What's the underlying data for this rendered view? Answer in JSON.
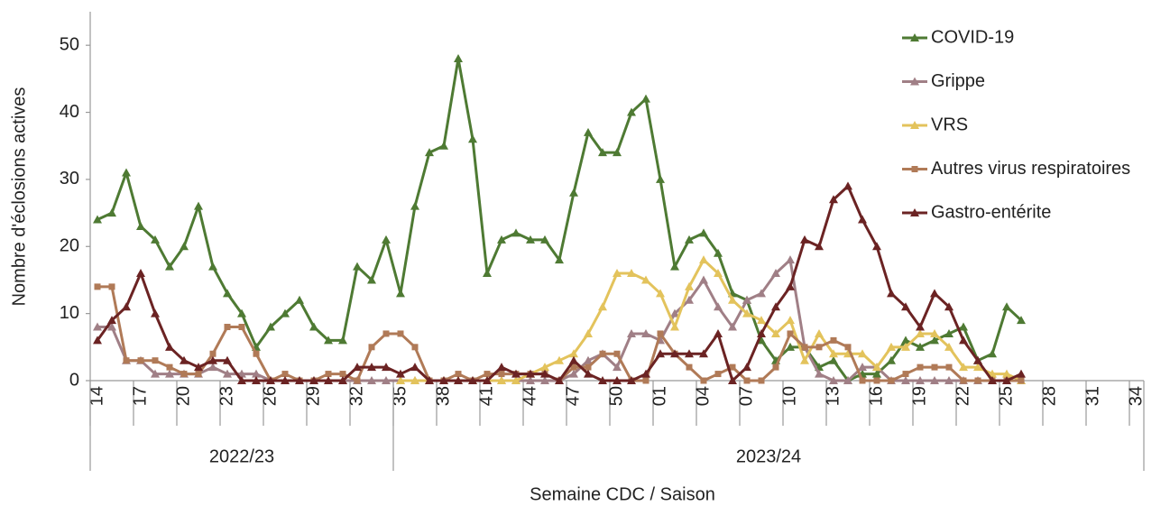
{
  "chart_data": {
    "type": "line",
    "y_label": "Nombre d'éclosions actives",
    "x_label": "Semaine CDC / Saison",
    "categories": [
      "14",
      null,
      null,
      "17",
      null,
      null,
      "20",
      null,
      null,
      "23",
      null,
      null,
      "26",
      null,
      null,
      "29",
      null,
      null,
      "32",
      null,
      null,
      "35",
      null,
      null,
      "38",
      null,
      null,
      "41",
      null,
      null,
      "44",
      null,
      null,
      "47",
      null,
      null,
      "50",
      null,
      null,
      "01",
      null,
      null,
      "04",
      null,
      null,
      "07",
      null,
      null,
      "10",
      null,
      null,
      "13",
      null,
      null,
      "16",
      null,
      null,
      "19",
      null,
      null,
      "22",
      null,
      null,
      "25",
      null,
      null,
      "28",
      null,
      null,
      "31",
      null,
      null,
      "34"
    ],
    "x_groups": [
      {
        "label": "2022/23",
        "size": 21
      },
      {
        "label": "2023/24",
        "size": 52
      }
    ],
    "ylim": [
      0,
      55
    ],
    "yticks": [
      0,
      10,
      20,
      30,
      40,
      50
    ],
    "legend": "right",
    "series": [
      {
        "name": "COVID-19",
        "color": "#4e7a33",
        "marker": "triangle",
        "values": [
          24,
          25,
          31,
          23,
          21,
          17,
          20,
          26,
          17,
          13,
          10,
          5,
          8,
          10,
          12,
          8,
          6,
          6,
          17,
          15,
          21,
          13,
          26,
          34,
          35,
          48,
          36,
          16,
          21,
          22,
          21,
          21,
          18,
          28,
          37,
          34,
          34,
          40,
          42,
          30,
          17,
          21,
          22,
          19,
          13,
          12,
          6,
          3,
          5,
          5,
          2,
          3,
          0,
          1,
          1,
          3,
          6,
          5,
          6,
          7,
          8,
          3,
          4,
          11,
          9,
          null,
          null,
          null,
          null,
          null,
          null,
          null,
          null
        ]
      },
      {
        "name": "Grippe",
        "color": "#a07f86",
        "marker": "triangle",
        "values": [
          8,
          8,
          3,
          3,
          1,
          1,
          1,
          1,
          2,
          1,
          1,
          1,
          0,
          0,
          0,
          0,
          0,
          0,
          0,
          0,
          0,
          0,
          0,
          0,
          0,
          0,
          0,
          0,
          0,
          0,
          0,
          0,
          0,
          1,
          3,
          4,
          2,
          7,
          7,
          6,
          10,
          12,
          15,
          11,
          8,
          12,
          13,
          16,
          18,
          5,
          1,
          0,
          0,
          2,
          2,
          0,
          0,
          0,
          0,
          0,
          0,
          0,
          0,
          0,
          0,
          null,
          null,
          null,
          null,
          null,
          null,
          null,
          null
        ]
      },
      {
        "name": "VRS",
        "color": "#e3c35c",
        "marker": "triangle",
        "values": [
          null,
          null,
          null,
          null,
          null,
          null,
          null,
          null,
          null,
          null,
          null,
          null,
          null,
          null,
          null,
          null,
          null,
          null,
          null,
          null,
          null,
          0,
          0,
          0,
          0,
          0,
          0,
          0,
          0,
          0,
          1,
          2,
          3,
          4,
          7,
          11,
          16,
          16,
          15,
          13,
          8,
          14,
          18,
          16,
          12,
          10,
          9,
          7,
          9,
          3,
          7,
          4,
          4,
          4,
          2,
          5,
          5,
          7,
          7,
          5,
          2,
          2,
          1,
          1,
          0,
          null,
          null,
          null,
          null,
          null,
          null,
          null,
          null
        ]
      },
      {
        "name": "Autres virus respiratoires",
        "color": "#b07a57",
        "marker": "square",
        "values": [
          14,
          14,
          3,
          3,
          3,
          2,
          1,
          1,
          4,
          8,
          8,
          4,
          0,
          1,
          0,
          0,
          1,
          1,
          0,
          5,
          7,
          7,
          5,
          0,
          0,
          1,
          0,
          1,
          1,
          1,
          1,
          1,
          0,
          2,
          2,
          4,
          4,
          0,
          0,
          7,
          4,
          2,
          0,
          1,
          2,
          0,
          0,
          2,
          7,
          5,
          5,
          6,
          5,
          0,
          0,
          0,
          1,
          2,
          2,
          2,
          0,
          0,
          0,
          0,
          0,
          null,
          null,
          null,
          null,
          null,
          null,
          null,
          null
        ]
      },
      {
        "name": "Gastro-entérite",
        "color": "#6b2323",
        "marker": "triangle",
        "values": [
          6,
          9,
          11,
          16,
          10,
          5,
          3,
          2,
          3,
          3,
          0,
          0,
          0,
          0,
          0,
          0,
          0,
          0,
          2,
          2,
          2,
          1,
          2,
          0,
          0,
          0,
          0,
          0,
          2,
          1,
          1,
          1,
          0,
          3,
          1,
          0,
          0,
          0,
          1,
          4,
          4,
          4,
          4,
          7,
          0,
          2,
          7,
          11,
          14,
          21,
          20,
          27,
          29,
          24,
          20,
          13,
          11,
          8,
          13,
          11,
          6,
          3,
          0,
          0,
          1,
          null,
          null,
          null,
          null,
          null,
          null,
          null,
          null
        ]
      }
    ]
  }
}
